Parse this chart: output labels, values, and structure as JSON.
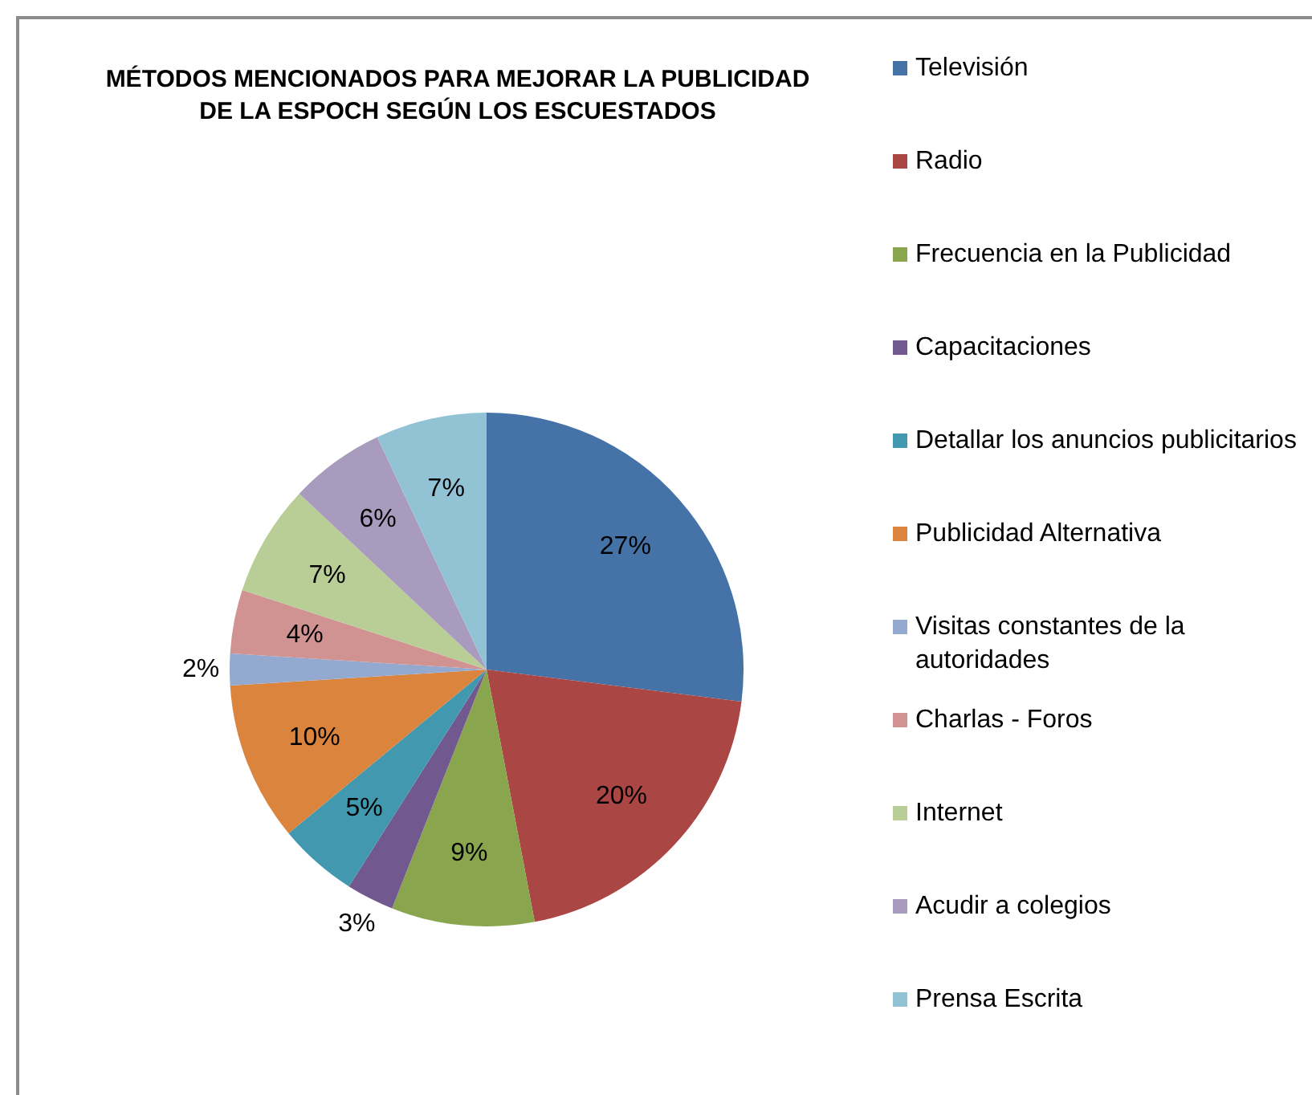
{
  "chart_data": {
    "type": "pie",
    "title": "MÉTODOS MENCIONADOS PARA MEJORAR LA PUBLICIDAD DE LA ESPOCH SEGÚN LOS ESCUESTADOS",
    "categories": [
      "Televisión",
      "Radio",
      "Frecuencia en la Publicidad",
      "Capacitaciones",
      "Detallar los anuncios publicitarios",
      "Publicidad Alternativa",
      "Visitas constantes de la autoridades",
      "Charlas - Foros",
      "Internet",
      "Acudir a colegios",
      "Prensa Escrita"
    ],
    "values": [
      27,
      20,
      9,
      3,
      5,
      10,
      2,
      4,
      7,
      6,
      7
    ],
    "value_labels": [
      "27%",
      "20%",
      "9%",
      "3%",
      "5%",
      "10%",
      "2%",
      "4%",
      "7%",
      "6%",
      "7%"
    ],
    "colors": [
      "#4572a7",
      "#aa4643",
      "#89a54e",
      "#71588f",
      "#4198af",
      "#db843d",
      "#93a9cf",
      "#d19392",
      "#b9cd96",
      "#a99bbd",
      "#91c3d5"
    ],
    "legend": "right"
  }
}
